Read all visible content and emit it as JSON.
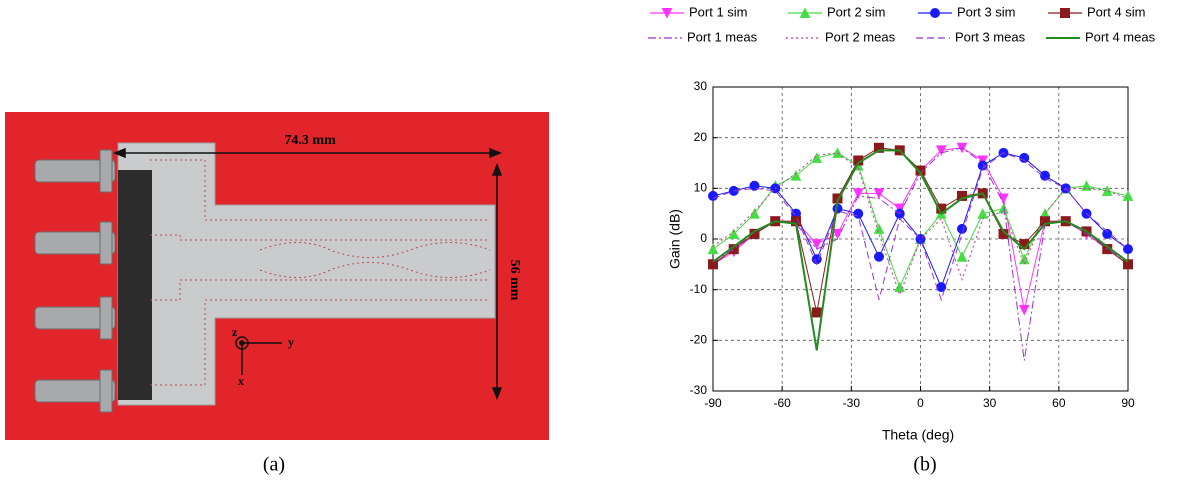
{
  "photo": {
    "width_label": "74.3 mm",
    "height_label": "56 mm",
    "axis_z": "z",
    "axis_y": "y",
    "axis_x": "x",
    "caption": "(a)"
  },
  "chart_caption": "(b)",
  "chart_data": {
    "type": "line",
    "xlabel": "Theta (deg)",
    "ylabel": "Gain (dB)",
    "x": [
      -90,
      -81,
      -72,
      -63,
      -54,
      -45,
      -36,
      -27,
      -18,
      -9,
      0,
      9,
      18,
      27,
      36,
      45,
      54,
      63,
      72,
      81,
      90
    ],
    "xlim": [
      -90,
      90
    ],
    "xticks": [
      -90,
      -60,
      -30,
      0,
      30,
      60,
      90
    ],
    "ylim": [
      -30,
      30
    ],
    "yticks": [
      -30,
      -20,
      -10,
      0,
      10,
      20,
      30
    ],
    "grid": true,
    "series": [
      {
        "name": "Port 1 sim",
        "color": "#ff33ff",
        "marker": "triangle-down",
        "dash": "solid",
        "values": [
          -5,
          -2.5,
          1,
          3.5,
          3.5,
          -1,
          1,
          9,
          9,
          6,
          13.5,
          17.5,
          18,
          15.5,
          8,
          -14,
          3.5,
          3.5,
          1,
          -2,
          -5
        ]
      },
      {
        "name": "Port 2 sim",
        "color": "#44dd44",
        "marker": "triangle-up",
        "dash": "solid",
        "values": [
          -2,
          1,
          5,
          10.5,
          12.5,
          16,
          17,
          14.5,
          2,
          -9.5,
          0,
          5,
          -3.5,
          5,
          6,
          -4,
          5,
          10,
          10.5,
          9.5,
          8.5
        ]
      },
      {
        "name": "Port 3 sim",
        "color": "#1a1aff",
        "marker": "circle",
        "dash": "solid",
        "values": [
          8.5,
          9.5,
          10.5,
          10,
          5,
          -4,
          6,
          5,
          -3.5,
          5,
          0,
          -9.5,
          2,
          14.5,
          17,
          16,
          12.5,
          10,
          5,
          1,
          -2
        ]
      },
      {
        "name": "Port 4 sim",
        "color": "#8b1a1a",
        "marker": "square",
        "dash": "solid",
        "values": [
          -5,
          -2,
          1,
          3.5,
          3.5,
          -14.5,
          8,
          15.5,
          18,
          17.5,
          13.5,
          6,
          8.5,
          9,
          1,
          -1,
          3.5,
          3.5,
          1.5,
          -2,
          -5
        ]
      },
      {
        "name": "Port 1 meas",
        "color": "#9933cc",
        "marker": "none",
        "dash": "dashdot",
        "values": [
          -4.5,
          -2,
          1.5,
          3.5,
          3,
          -2,
          0,
          8.5,
          8,
          5,
          13,
          17,
          18,
          15,
          7,
          -24,
          3,
          3.5,
          1,
          -2,
          -4.5
        ]
      },
      {
        "name": "Port 2 meas",
        "color": "#cc3399",
        "marker": "none",
        "dash": "dotted",
        "values": [
          -1.5,
          1.5,
          5.5,
          10,
          13,
          16.5,
          17,
          14,
          1,
          -11,
          0,
          4,
          -8,
          4,
          5.5,
          -5,
          5,
          10,
          10,
          9.5,
          8
        ]
      },
      {
        "name": "Port 3 meas",
        "color": "#9933cc",
        "marker": "none",
        "dash": "dashed",
        "values": [
          8,
          9.5,
          10,
          9.5,
          4.5,
          -5,
          5.5,
          4.5,
          -12,
          4,
          0,
          -12,
          1,
          14,
          17,
          15.5,
          12,
          10,
          5,
          1.5,
          -2
        ]
      },
      {
        "name": "Port 4 meas",
        "color": "#228b22",
        "marker": "none",
        "dash": "solid",
        "values": [
          -4.5,
          -1.5,
          1.5,
          3.5,
          3,
          -22,
          7.5,
          15,
          17.5,
          17.5,
          13,
          5,
          8,
          9,
          1.5,
          -2,
          3,
          3.5,
          1.5,
          -1.5,
          -4.5
        ]
      }
    ]
  }
}
